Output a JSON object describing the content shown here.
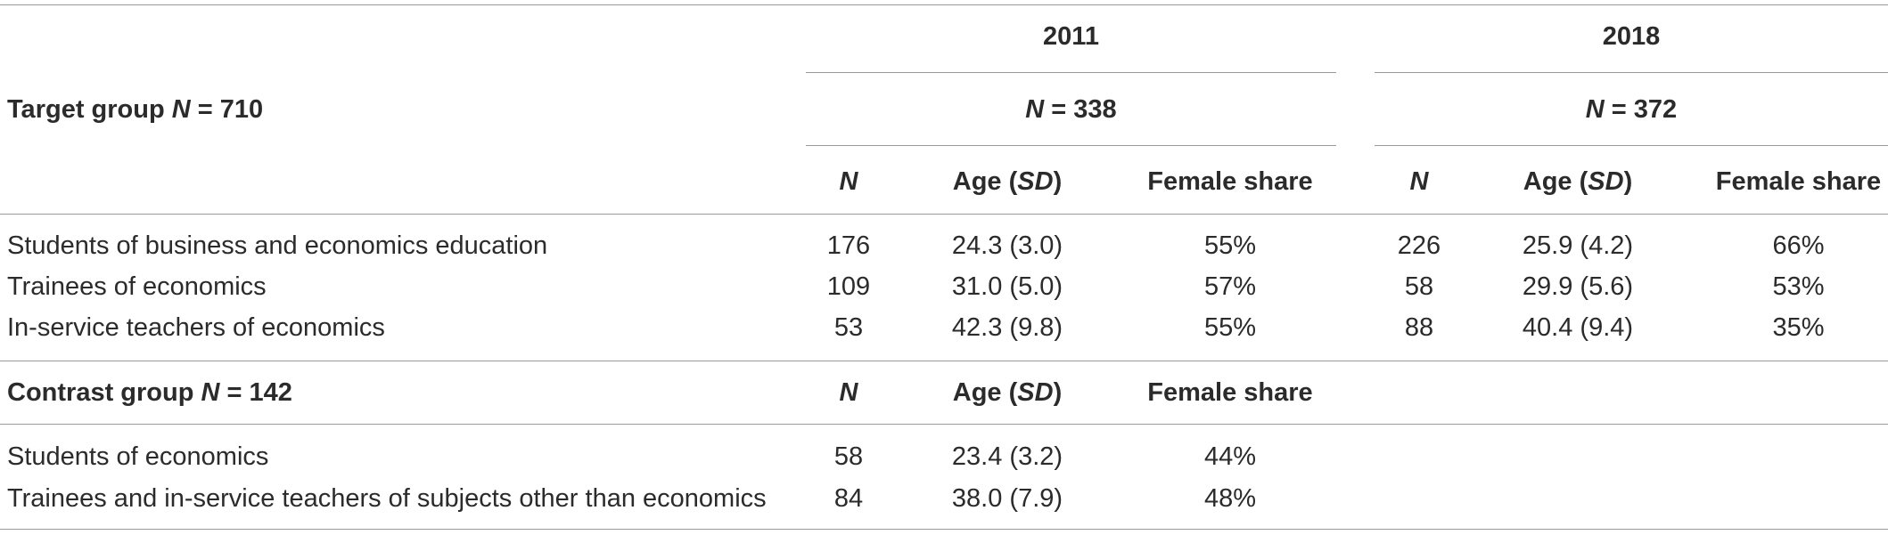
{
  "header": {
    "year_2011": "2011",
    "year_2018": "2018",
    "target_group_prefix": "Target group ",
    "n_symbol": "N",
    "target_group_value": " = 710",
    "n_2011_value": " = 338",
    "n_2018_value": " = 372",
    "col_n": "N",
    "col_age_prefix": "Age (",
    "col_age_sd": "SD",
    "col_age_suffix": ")",
    "col_female": "Female share"
  },
  "target_rows": [
    {
      "label": "Students of business and economics education",
      "n2011": "176",
      "age2011": "24.3 (3.0)",
      "fem2011": "55%",
      "n2018": "226",
      "age2018": "25.9 (4.2)",
      "fem2018": "66%"
    },
    {
      "label": "Trainees of economics",
      "n2011": "109",
      "age2011": "31.0 (5.0)",
      "fem2011": "57%",
      "n2018": "58",
      "age2018": "29.9 (5.6)",
      "fem2018": "53%"
    },
    {
      "label": "In-service teachers of economics",
      "n2011": "53",
      "age2011": "42.3 (9.8)",
      "fem2011": "55%",
      "n2018": "88",
      "age2018": "40.4 (9.4)",
      "fem2018": "35%"
    }
  ],
  "contrast_header": {
    "prefix": "Contrast group ",
    "n_symbol": "N",
    "value": " = 142"
  },
  "contrast_rows": [
    {
      "label": "Students of economics",
      "n": "58",
      "age": "23.4 (3.2)",
      "fem": "44%"
    },
    {
      "label": "Trainees and in-service teachers of subjects other than economics",
      "n": "84",
      "age": "38.0 (7.9)",
      "fem": "48%"
    }
  ]
}
